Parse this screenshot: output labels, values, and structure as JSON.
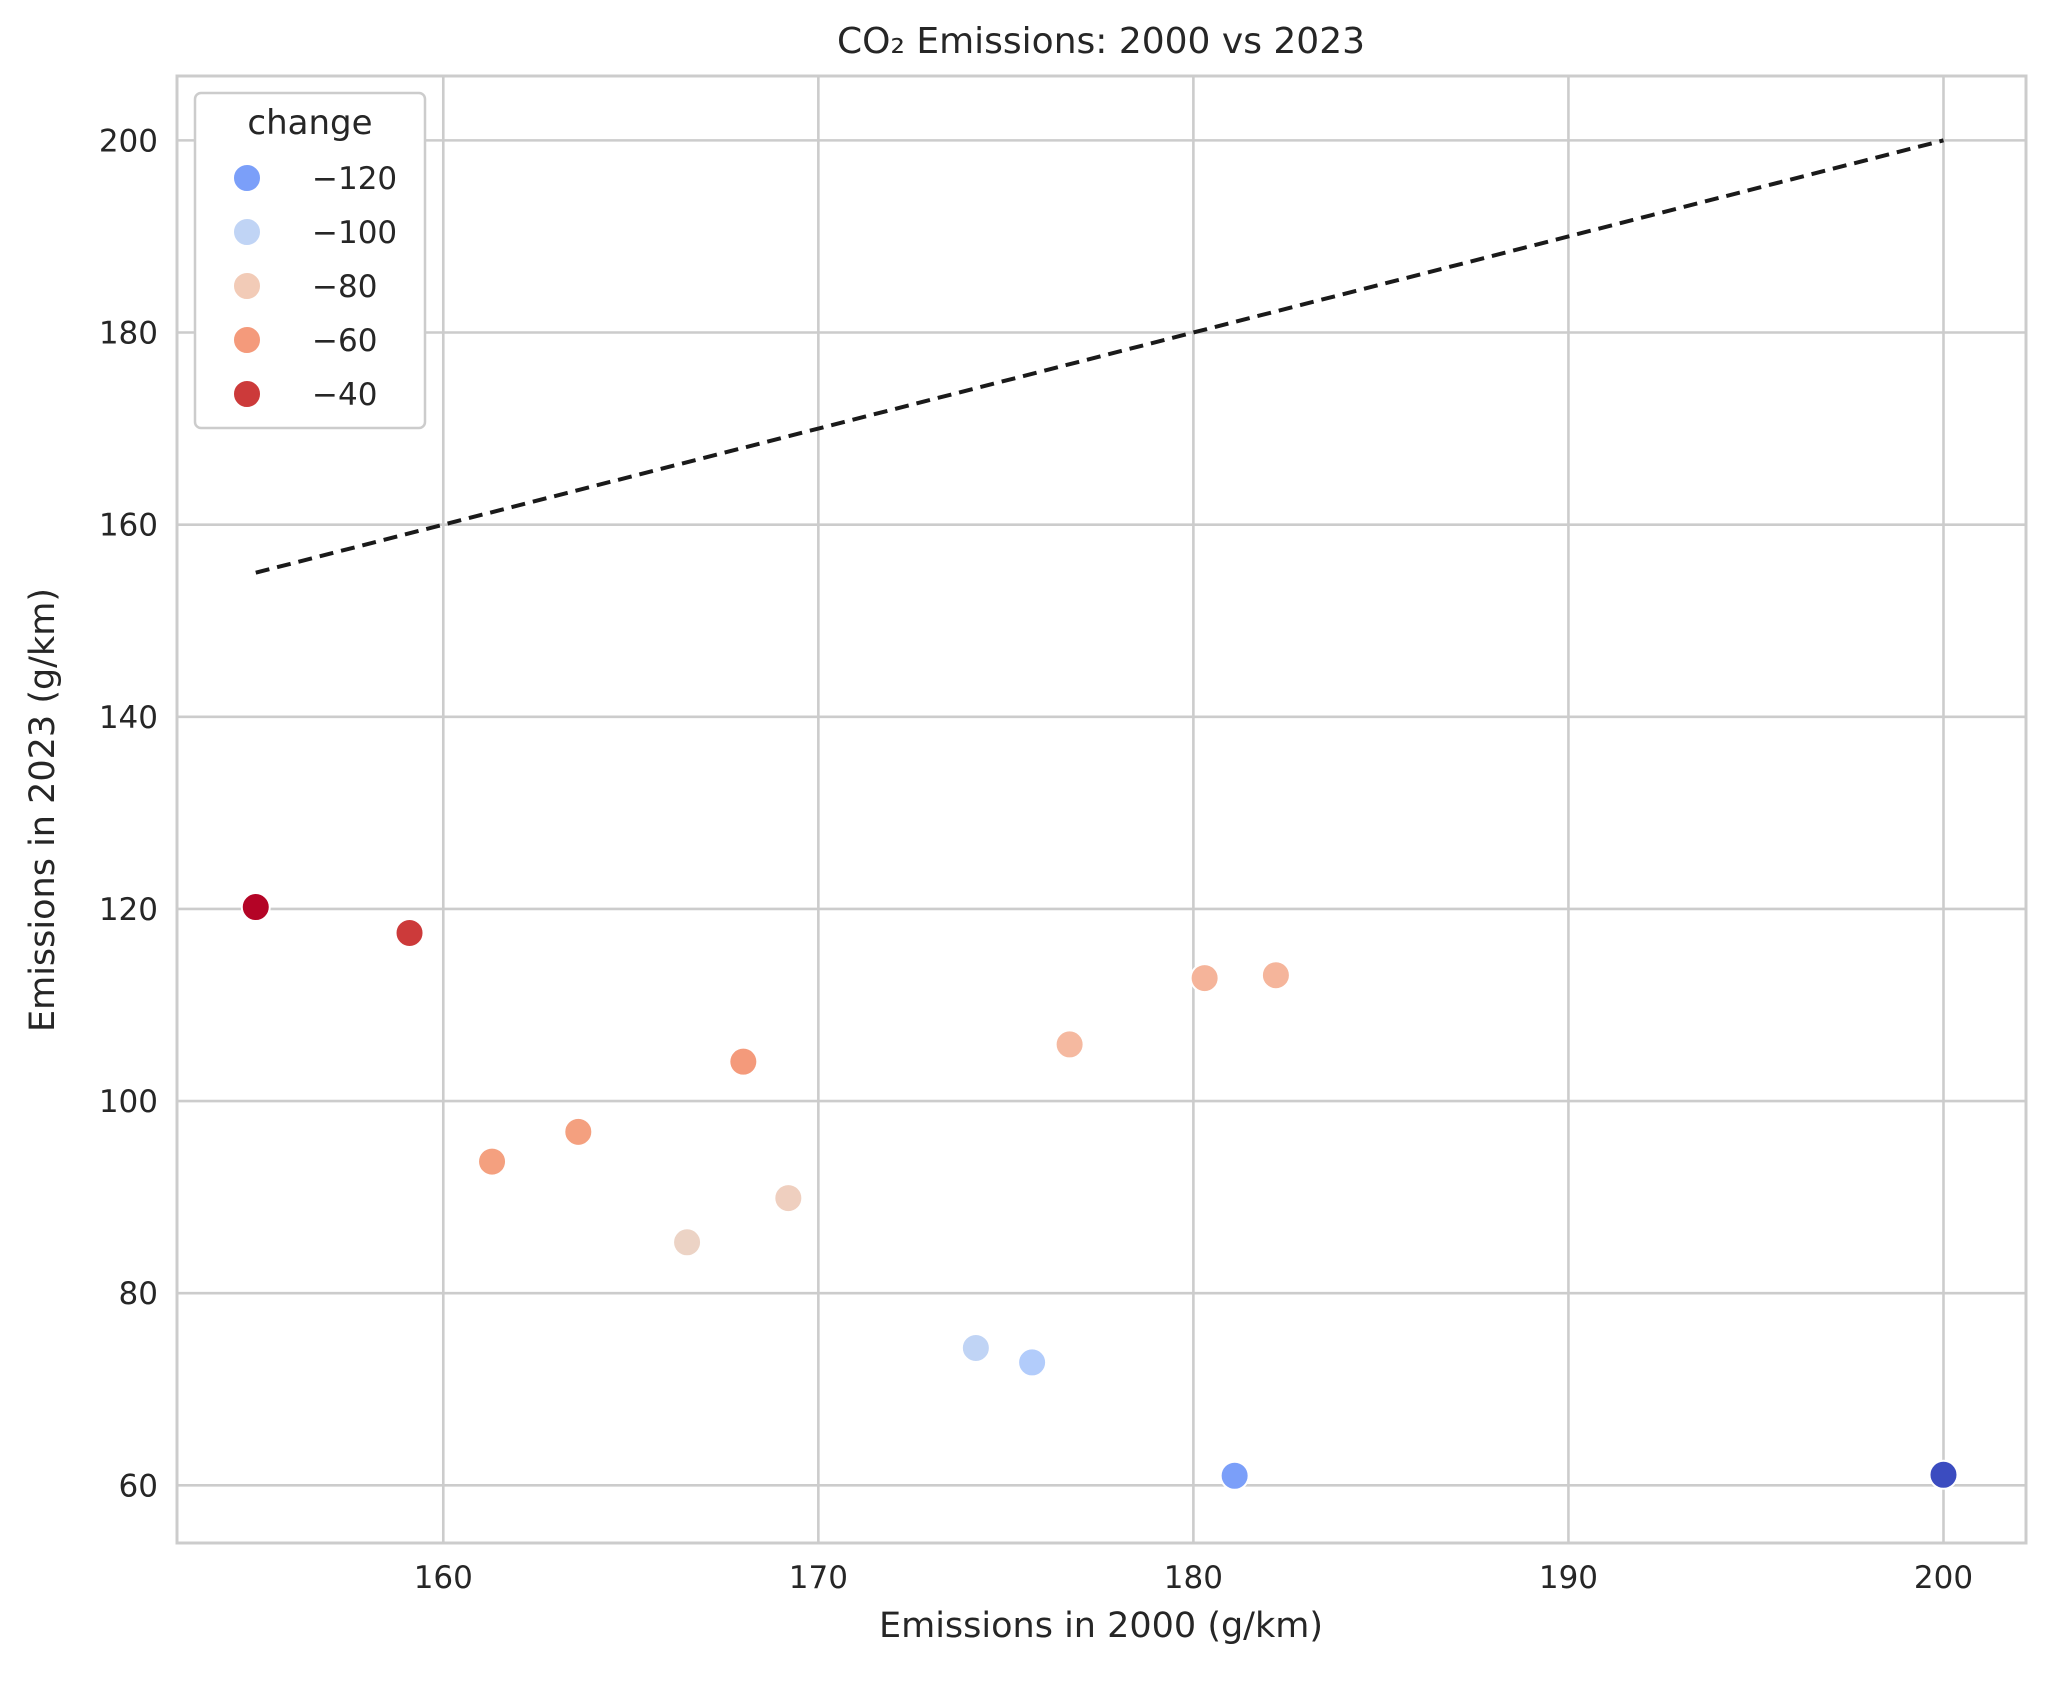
{
  "chart_data": {
    "type": "scatter",
    "title": "CO₂ Emissions: 2000 vs 2023",
    "xlabel": "Emissions in 2000 (g/km)",
    "ylabel": "Emissions in 2023 (g/km)",
    "xlim": [
      152.9,
      202.2
    ],
    "ylim": [
      54.0,
      206.7
    ],
    "xticks": [
      160,
      170,
      180,
      190,
      200
    ],
    "yticks": [
      60,
      80,
      100,
      120,
      140,
      160,
      180,
      200
    ],
    "grid": true,
    "hue_variable": "change",
    "legend": {
      "title": "change",
      "placement": "top-left",
      "entries": [
        {
          "label": "−120",
          "color": "#7b9ff9"
        },
        {
          "label": "−100",
          "color": "#c0d4f5"
        },
        {
          "label": "−80",
          "color": "#f2cbb7"
        },
        {
          "label": "−60",
          "color": "#f49a7b"
        },
        {
          "label": "−40",
          "color": "#cc3a3a"
        }
      ]
    },
    "reference_line": {
      "style": "dashed",
      "color": "#1a1a1a",
      "x": [
        155.0,
        200.0
      ],
      "y": [
        155.0,
        200.0
      ]
    },
    "points": [
      {
        "x": 155.0,
        "y": 120.2,
        "change": -34.8,
        "color": "#b40426"
      },
      {
        "x": 159.1,
        "y": 117.5,
        "change": -41.6,
        "color": "#cc3a3a"
      },
      {
        "x": 161.3,
        "y": 93.7,
        "change": -67.6,
        "color": "#f4a07f"
      },
      {
        "x": 163.6,
        "y": 96.8,
        "change": -66.8,
        "color": "#f4a07f"
      },
      {
        "x": 166.5,
        "y": 85.3,
        "change": -81.2,
        "color": "#ecd3c5"
      },
      {
        "x": 168.0,
        "y": 104.1,
        "change": -63.9,
        "color": "#f49a7b"
      },
      {
        "x": 169.2,
        "y": 89.9,
        "change": -79.3,
        "color": "#efcfbf"
      },
      {
        "x": 174.2,
        "y": 74.3,
        "change": -99.9,
        "color": "#c0d4f5"
      },
      {
        "x": 175.7,
        "y": 72.8,
        "change": -102.9,
        "color": "#b2ccfb"
      },
      {
        "x": 176.7,
        "y": 105.9,
        "change": -70.8,
        "color": "#f5b9a0"
      },
      {
        "x": 180.3,
        "y": 112.8,
        "change": -67.5,
        "color": "#f5b49a"
      },
      {
        "x": 181.1,
        "y": 61.0,
        "change": -120.1,
        "color": "#7b9ff9"
      },
      {
        "x": 182.2,
        "y": 113.1,
        "change": -69.1,
        "color": "#f5b59b"
      },
      {
        "x": 200.0,
        "y": 61.1,
        "change": -138.9,
        "color": "#3b4cc0"
      }
    ]
  }
}
